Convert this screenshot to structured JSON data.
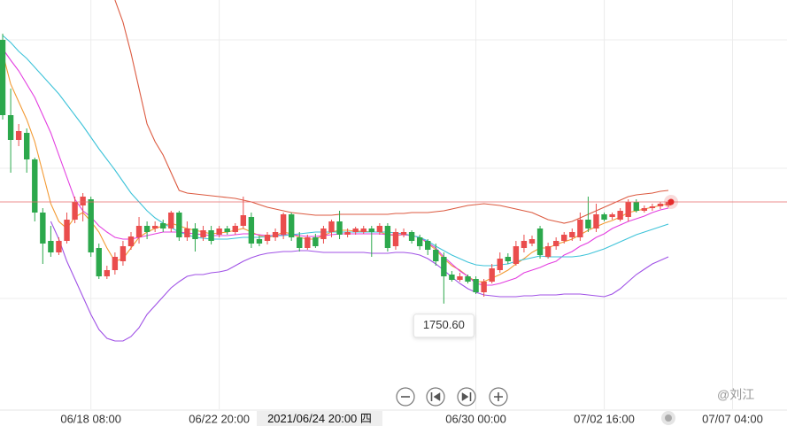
{
  "chart_data": {
    "type": "candlestick",
    "categories": [
      null,
      null,
      null,
      null,
      null,
      null,
      null,
      null,
      null,
      null,
      null,
      "06/18 08:00",
      null,
      null,
      null,
      null,
      null,
      null,
      null,
      null,
      null,
      null,
      null,
      null,
      null,
      null,
      null,
      "06/22 20:00",
      null,
      null,
      null,
      null,
      null,
      null,
      null,
      null,
      null,
      null,
      null,
      null,
      null,
      null,
      null,
      null,
      null,
      null,
      null,
      null,
      null,
      null,
      null,
      null,
      null,
      null,
      null,
      null,
      null,
      null,
      null,
      "06/30 00:00",
      null,
      null,
      null,
      null,
      null,
      null,
      null,
      null,
      null,
      null,
      null,
      null,
      null,
      null,
      null,
      "07/02 16:00",
      null,
      null,
      null,
      null,
      null,
      null,
      null,
      null,
      null,
      null,
      null,
      null,
      null,
      null,
      null,
      "07/07 04:00"
    ],
    "open": [
      1899.5,
      1857,
      1843,
      1847,
      1832,
      1802,
      1786,
      1779.5,
      1786,
      1798,
      1806,
      1809.5,
      1782,
      1766,
      1769.5,
      1774.5,
      1783,
      1788,
      1794.5,
      1793,
      1796,
      1793,
      1802,
      1788,
      1793,
      1788,
      1792,
      1789.5,
      1793,
      1791,
      1794.5,
      1799.5,
      1787,
      1786,
      1788,
      1789.5,
      1801,
      1788,
      1782,
      1788,
      1787,
      1791,
      1797,
      1789.5,
      1791,
      1791,
      1793,
      1791,
      1794.5,
      1783,
      1789.5,
      1791,
      1788,
      1786,
      1781,
      1777,
      1767,
      1764,
      1766,
      1764.5,
      1757,
      1763,
      1769.5,
      1777,
      1773,
      1782,
      1784.5,
      1793,
      1777,
      1783,
      1786,
      1788,
      1788,
      1798,
      1793,
      1801,
      1799.5,
      1798,
      1799.5,
      1808,
      1803,
      1804.5,
      1805.5,
      1806,
      null,
      null,
      null,
      null,
      null,
      null,
      null,
      null
    ],
    "close": [
      1857,
      1843,
      1848,
      1832,
      1802,
      1784.5,
      1779.5,
      1786,
      1798,
      1808,
      1811,
      1779.5,
      1766,
      1769.5,
      1777,
      1783,
      1788.5,
      1794.5,
      1791,
      1794.5,
      1793,
      1802,
      1788,
      1793,
      1787,
      1792,
      1786,
      1793,
      1791,
      1794.5,
      1800.5,
      1784.5,
      1784.5,
      1789.5,
      1791,
      1801,
      1788,
      1782,
      1788,
      1783,
      1793,
      1797,
      1789.5,
      1791,
      1793,
      1793,
      1791,
      1794.5,
      1782,
      1791,
      1791,
      1786,
      1783,
      1781,
      1774.5,
      1766,
      1764,
      1766,
      1763,
      1757,
      1763,
      1770.5,
      1776,
      1774.5,
      1783,
      1786,
      1787,
      1778,
      1783,
      1786,
      1789.5,
      1791,
      1798,
      1793,
      1801,
      1798,
      1801,
      1803,
      1808,
      1803,
      1804.5,
      1805.5,
      1807,
      1808,
      null,
      null,
      null,
      null,
      null,
      null,
      null,
      null
    ],
    "high": [
      1903,
      1872,
      1852,
      1849.5,
      1833,
      1804.5,
      1794.5,
      1788,
      1802,
      1811,
      1813,
      1811,
      1784.5,
      1772,
      1779.5,
      1786,
      1791,
      1799.5,
      1797,
      1797,
      1798,
      1803,
      1803,
      1797,
      1796,
      1794.5,
      1794.5,
      1794.5,
      1794.5,
      1796,
      1811,
      1802,
      1789,
      1791,
      1793,
      1802,
      1802,
      1791,
      1789.5,
      1790,
      1794.5,
      1798,
      1803,
      1793,
      1794,
      1794.5,
      1794.5,
      1796,
      1796,
      1793,
      1793,
      1792,
      1789.5,
      1787,
      1784.5,
      1779.5,
      1769,
      1768,
      1767,
      1766,
      1764.5,
      1773,
      1779.5,
      1779,
      1786,
      1789.5,
      1789,
      1794.5,
      1785,
      1788,
      1791,
      1793,
      1802,
      1811,
      1807,
      1802,
      1802,
      1804.5,
      1809.5,
      1809.5,
      1806,
      1807,
      1808,
      1809,
      null,
      null,
      null,
      null,
      null,
      null,
      null,
      null
    ],
    "low": [
      1854.5,
      1824.5,
      1839.5,
      1824.5,
      1797,
      1773,
      1777,
      1778,
      1784.5,
      1796,
      1797,
      1777,
      1764.5,
      1764.5,
      1767,
      1772,
      1781,
      1784.5,
      1787,
      1791,
      1791,
      1791,
      1786,
      1786,
      1780,
      1786,
      1784,
      1788,
      1789.5,
      1789.5,
      1793,
      1782,
      1783,
      1784,
      1786,
      1787,
      1786,
      1780,
      1781,
      1782,
      1784.5,
      1788,
      1787,
      1788,
      1789.5,
      1790,
      1777,
      1789.5,
      1780,
      1781,
      1788,
      1784.5,
      1781,
      1778,
      1772,
      1750.6,
      1763,
      1763,
      1762,
      1756,
      1754.5,
      1762,
      1768,
      1773,
      1772,
      1779.5,
      1783,
      1776,
      1776,
      1781,
      1784.5,
      1786,
      1786,
      1791,
      1791,
      1797,
      1798,
      1797,
      1797,
      1802,
      1802,
      1803,
      1804,
      1805,
      null,
      null,
      null,
      null,
      null,
      null,
      null,
      null
    ],
    "up_color": "#ea4d4d",
    "down_color": "#2ca84c",
    "series": [
      {
        "color": "#f39a33",
        "values": [
          1892,
          1874.5,
          1864.5,
          1854.5,
          1842,
          1824.5,
          1807,
          1797,
          1793,
          1799.5,
          1802,
          1797,
          1791,
          1782,
          1774.5,
          1776,
          1782,
          1788,
          1791,
          1793,
          1794.5,
          1796,
          1794.5,
          1793,
          1792,
          1791,
          1790,
          1790.5,
          1791,
          1792,
          1793,
          1791,
          1789,
          1788,
          1789,
          1791,
          1790,
          1788,
          1787,
          1787,
          1789,
          1791,
          1792,
          1792,
          1791.5,
          1791.5,
          1791,
          1791,
          1789.5,
          1789,
          1789.5,
          1789,
          1788,
          1784.5,
          1781,
          1776,
          1772,
          1769.5,
          1766,
          1763,
          1763,
          1765,
          1767,
          1769.5,
          1773,
          1776,
          1779.5,
          1782,
          1782,
          1784,
          1785.5,
          1787,
          1789.5,
          1792,
          1794,
          1796,
          1797.5,
          1799.5,
          1802,
          1803,
          1804,
          1805,
          1806,
          1807,
          null,
          null,
          null,
          null,
          null,
          null,
          null,
          null
        ]
      },
      {
        "color": "#e33ee0",
        "values": [
          1894.5,
          1888,
          1882,
          1874.5,
          1867,
          1857,
          1847,
          1834.5,
          1822,
          1809.5,
          1803,
          1799.5,
          1794.5,
          1791,
          1788,
          1787,
          1787,
          1788,
          1789,
          1790,
          1791,
          1791,
          1791,
          1790.5,
          1790,
          1789.5,
          1789,
          1789,
          1789,
          1789.5,
          1790,
          1790,
          1789.5,
          1789,
          1789,
          1789.5,
          1789.5,
          1789,
          1788.5,
          1788.5,
          1789,
          1789.5,
          1790,
          1790,
          1790,
          1790,
          1790,
          1790,
          1789.5,
          1789.5,
          1789.5,
          1789,
          1788,
          1785,
          1782,
          1777,
          1773,
          1769,
          1766,
          1762,
          1761,
          1761,
          1762,
          1763.5,
          1765,
          1768,
          1769.5,
          1771,
          1773,
          1774.5,
          1778,
          1780,
          1783,
          1785,
          1788,
          1790,
          1793,
          1795,
          1797,
          1798.5,
          1800,
          1802,
          1803.5,
          1804.5,
          null,
          null,
          null,
          null,
          null,
          null,
          null,
          null
        ]
      },
      {
        "color": "#3ec3d9",
        "values": [
          1902,
          1898,
          1893,
          1889,
          1884,
          1879,
          1874,
          1869,
          1863,
          1857,
          1851,
          1844.5,
          1838,
          1832,
          1826,
          1819.5,
          1813,
          1808,
          1803,
          1799,
          1796,
          1793.5,
          1791,
          1789.5,
          1788,
          1787.5,
          1787,
          1787,
          1787,
          1787.5,
          1788,
          1788,
          1788,
          1788.5,
          1789,
          1789,
          1789.5,
          1790,
          1790.5,
          1791,
          1791,
          1791,
          1791,
          1791,
          1791,
          1791,
          1791,
          1791,
          1791,
          1790.5,
          1790,
          1789,
          1788,
          1786,
          1783,
          1780.5,
          1778,
          1776,
          1774,
          1772.5,
          1772,
          1772,
          1772.5,
          1773,
          1774.5,
          1775.5,
          1776.5,
          1777.5,
          1777,
          1777,
          1777,
          1777,
          1777.5,
          1778.5,
          1780,
          1781.5,
          1783.5,
          1785.5,
          1787.5,
          1789.5,
          1791,
          1792.5,
          1794,
          1795.5,
          null,
          null,
          null,
          null,
          null,
          null,
          null,
          null
        ]
      },
      {
        "color": "#dc5a40",
        "values": [
          null,
          null,
          null,
          null,
          null,
          null,
          null,
          null,
          null,
          null,
          null,
          null,
          null,
          null,
          1922,
          1909.5,
          1892,
          1872,
          1852,
          1842,
          1834.5,
          1824.5,
          1814.5,
          1813,
          1812.5,
          1812,
          1811.5,
          1811,
          1810.5,
          1810,
          1809,
          1808,
          1806.5,
          1805,
          1804,
          1803,
          1802,
          1801.5,
          1801,
          1800.5,
          1800.5,
          1800.5,
          1801,
          1801,
          1801,
          1801,
          1801,
          1801,
          1801,
          1801.5,
          1801.5,
          1802,
          1802,
          1802,
          1802.5,
          1803,
          1804,
          1805,
          1806,
          1806.5,
          1807,
          1806.5,
          1806,
          1805,
          1804,
          1803,
          1802,
          1800,
          1798,
          1797,
          1796,
          1797,
          1799,
          1801,
          1803,
          1805,
          1807,
          1809,
          1811,
          1812,
          1812.5,
          1813,
          1814,
          1814.5,
          null,
          null,
          null,
          null,
          null,
          null,
          null,
          null
        ]
      },
      {
        "color": "#a052e6",
        "values": [
          null,
          null,
          null,
          null,
          null,
          null,
          1797,
          1787,
          1774.5,
          1764.5,
          1754.5,
          1744.5,
          1736,
          1731,
          1729.5,
          1729.5,
          1732,
          1737,
          1744.5,
          1749.5,
          1754.5,
          1759.5,
          1763,
          1766,
          1767,
          1767,
          1768,
          1768.5,
          1769.5,
          1772,
          1774.5,
          1776.5,
          1778,
          1779,
          1779.5,
          1780,
          1780,
          1780.5,
          1780.5,
          1780,
          1779.5,
          1779.5,
          1779.5,
          1779.5,
          1779.5,
          1779.5,
          1779,
          1779,
          1779,
          1779.5,
          1779.5,
          1779,
          1778,
          1776,
          1773,
          1769.5,
          1765.5,
          1762,
          1759,
          1757,
          1755.5,
          1755,
          1754.5,
          1754.5,
          1754.5,
          1755,
          1755,
          1755.5,
          1755.5,
          1755.5,
          1756,
          1756,
          1756,
          1755.5,
          1755,
          1754.5,
          1756,
          1759,
          1763,
          1767,
          1770,
          1773,
          1775,
          1777,
          null,
          null,
          null,
          null,
          null,
          null,
          null,
          null
        ]
      }
    ],
    "ylim": [
      1692,
      1922
    ],
    "last_price": 1808,
    "last_price_color": "#e86a6a",
    "min_marker": {
      "value": 1750.6,
      "label": "1750.60"
    },
    "crosshair_label": "2021/06/24 20:00 四",
    "grid": true
  },
  "watermark": "@刘江"
}
